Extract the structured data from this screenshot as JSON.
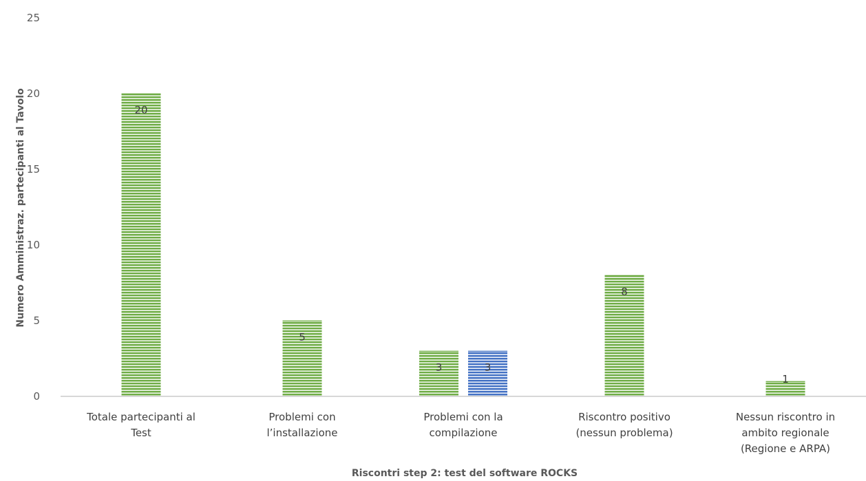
{
  "chart_data": {
    "type": "bar",
    "title": "",
    "xlabel": "Riscontri step 2: test del software ROCKS",
    "ylabel": "Numero Amministraz. partecipanti al Tavolo",
    "ylim": [
      0,
      25
    ],
    "yticks": [
      0,
      5,
      10,
      15,
      20,
      25
    ],
    "grid": false,
    "legend": "none",
    "categories": [
      [
        "Totale partecipanti al",
        "Test"
      ],
      [
        "Problemi con",
        "l’installazione"
      ],
      [
        "Problemi con la",
        "compilazione"
      ],
      [
        "Riscontro positivo",
        "(nessun problema)"
      ],
      [
        "Nessun riscontro in",
        "ambito regionale",
        "(Regione e ARPA)"
      ]
    ],
    "series": [
      {
        "values": [
          20,
          5,
          3,
          8,
          1
        ],
        "color": "#70ad47"
      },
      {
        "values": [
          null,
          null,
          3,
          null,
          null
        ],
        "color": "#4472c4"
      }
    ],
    "data_labels": true
  }
}
